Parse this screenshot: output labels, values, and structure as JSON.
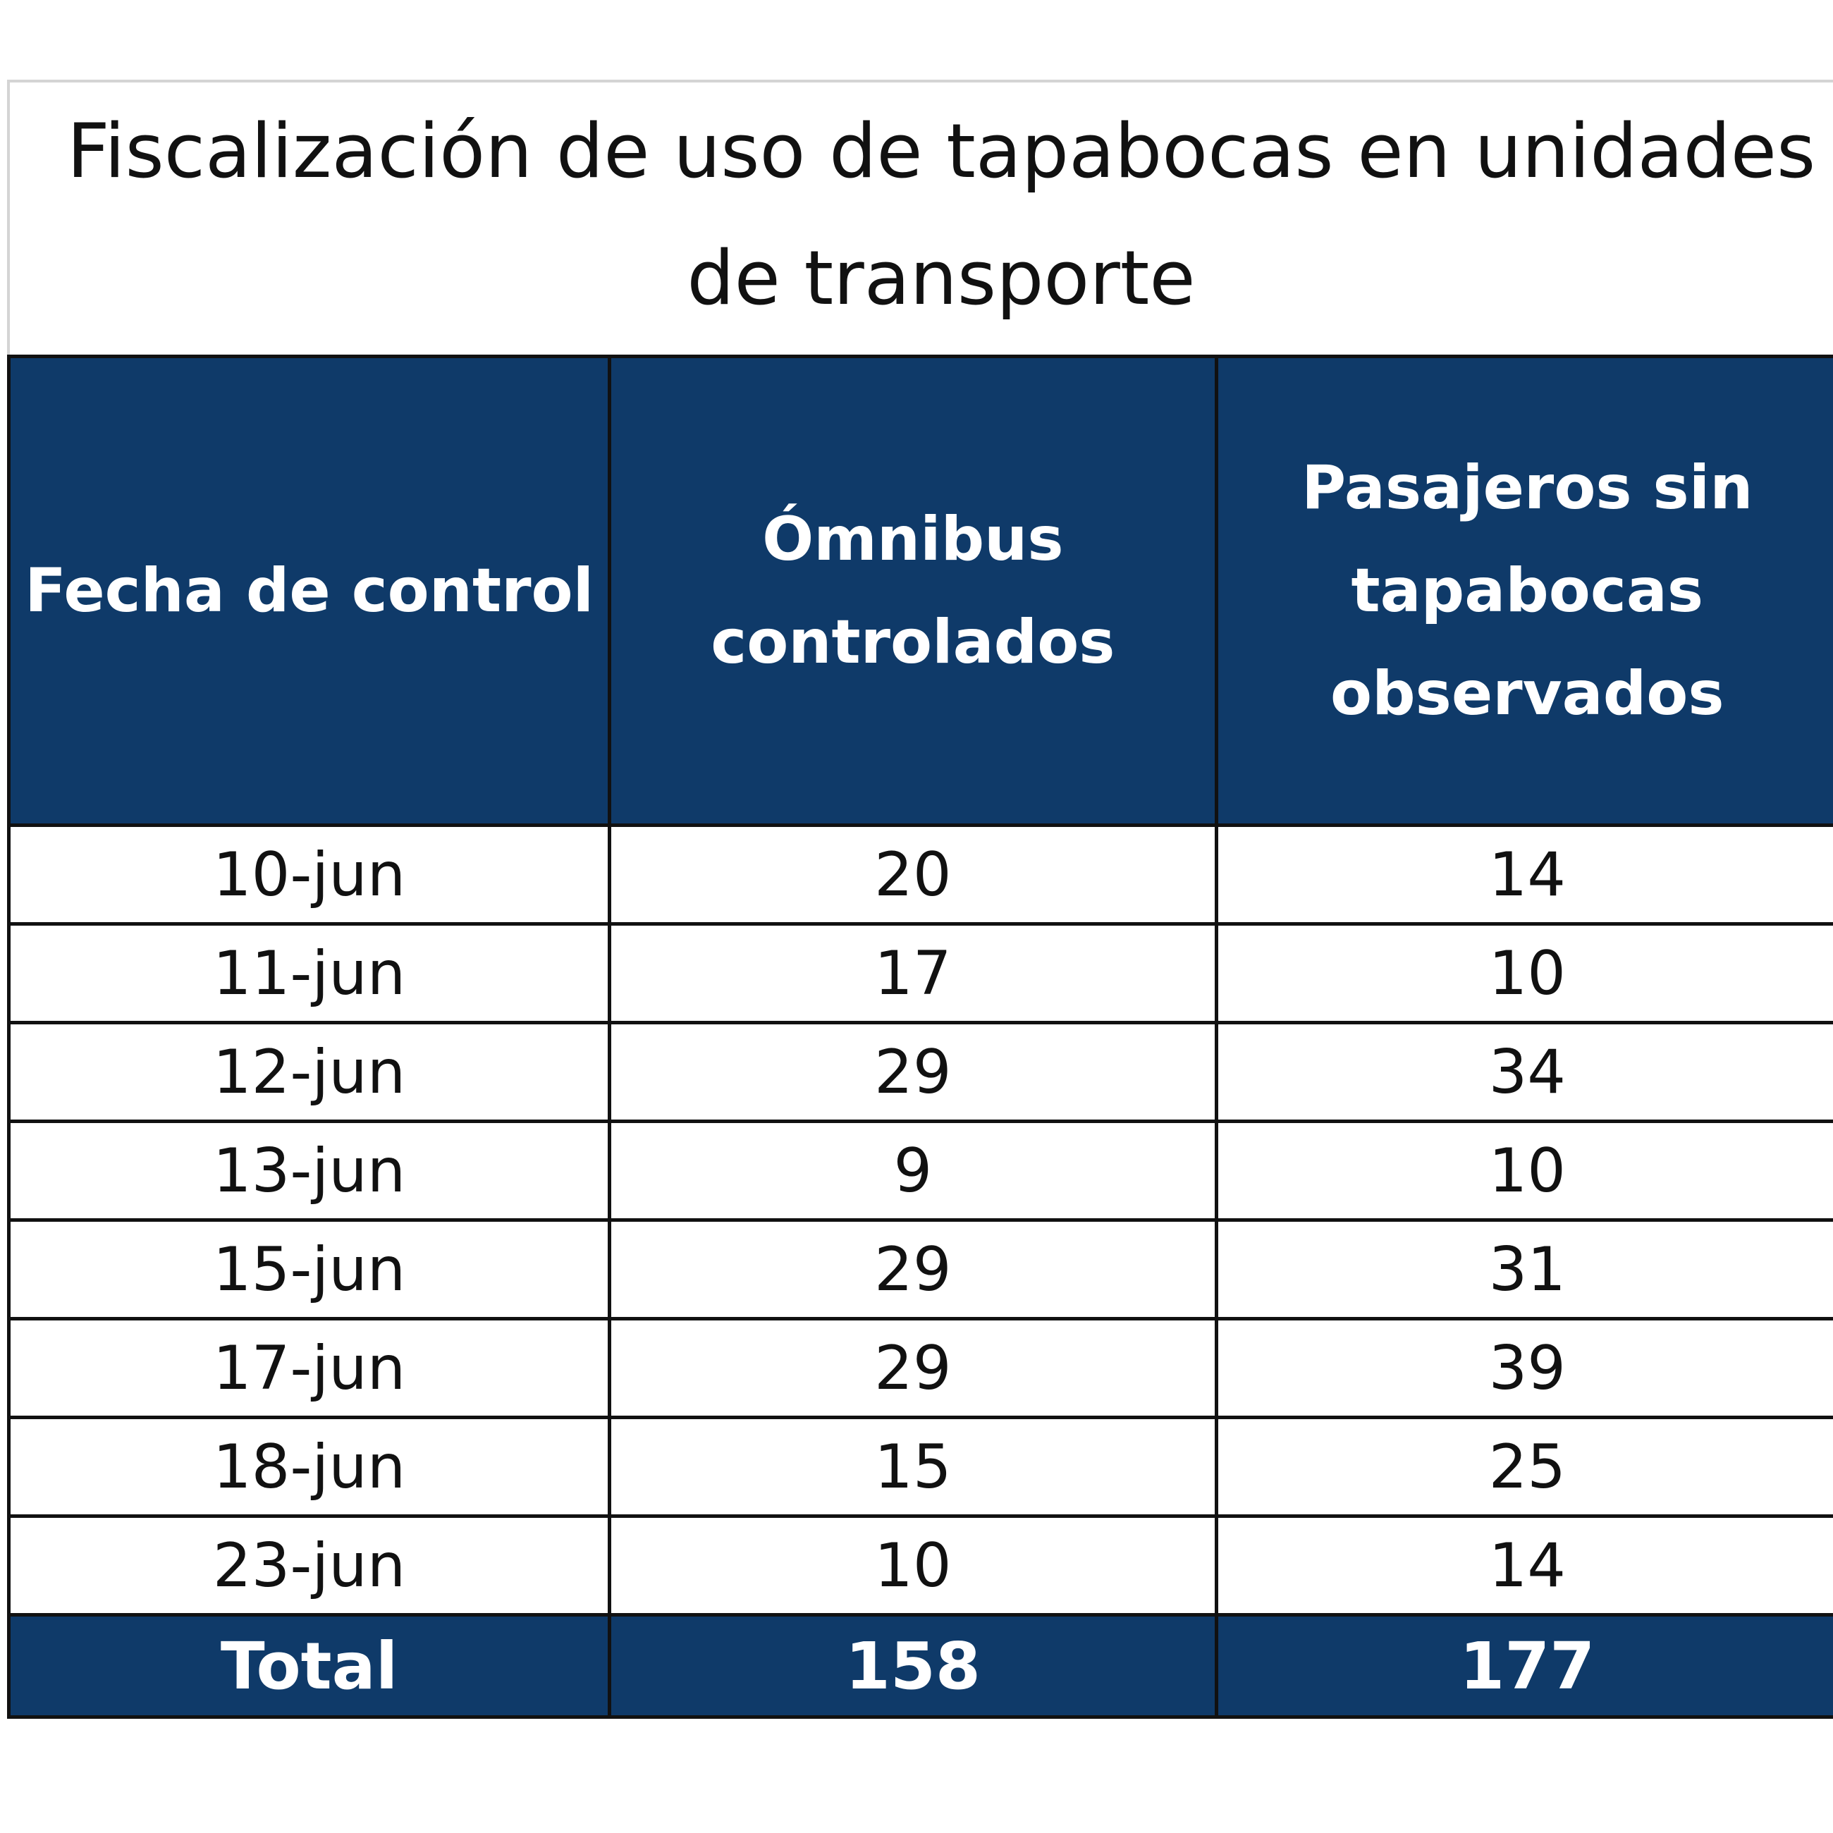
{
  "chart_data": {
    "type": "table",
    "title_lines": [
      "Fiscalización de uso de tapabocas en unidades",
      "de transporte"
    ],
    "columns": [
      {
        "lines": [
          "Fecha de control"
        ]
      },
      {
        "lines": [
          "Ómnibus",
          "controlados"
        ]
      },
      {
        "lines": [
          "Pasajeros sin",
          "tapabocas",
          "observados"
        ]
      }
    ],
    "rows": [
      [
        "10-jun",
        "20",
        "14"
      ],
      [
        "11-jun",
        "17",
        "10"
      ],
      [
        "12-jun",
        "29",
        "34"
      ],
      [
        "13-jun",
        "9",
        "10"
      ],
      [
        "15-jun",
        "29",
        "31"
      ],
      [
        "17-jun",
        "29",
        "39"
      ],
      [
        "18-jun",
        "15",
        "25"
      ],
      [
        "23-jun",
        "10",
        "14"
      ]
    ],
    "total_row": [
      "Total",
      "158",
      "177"
    ],
    "colors": {
      "header_background": "#0f3a69",
      "header_text": "#ffffff",
      "cell_background": "#ffffff",
      "cell_text": "#111111",
      "border": "#111111"
    }
  }
}
